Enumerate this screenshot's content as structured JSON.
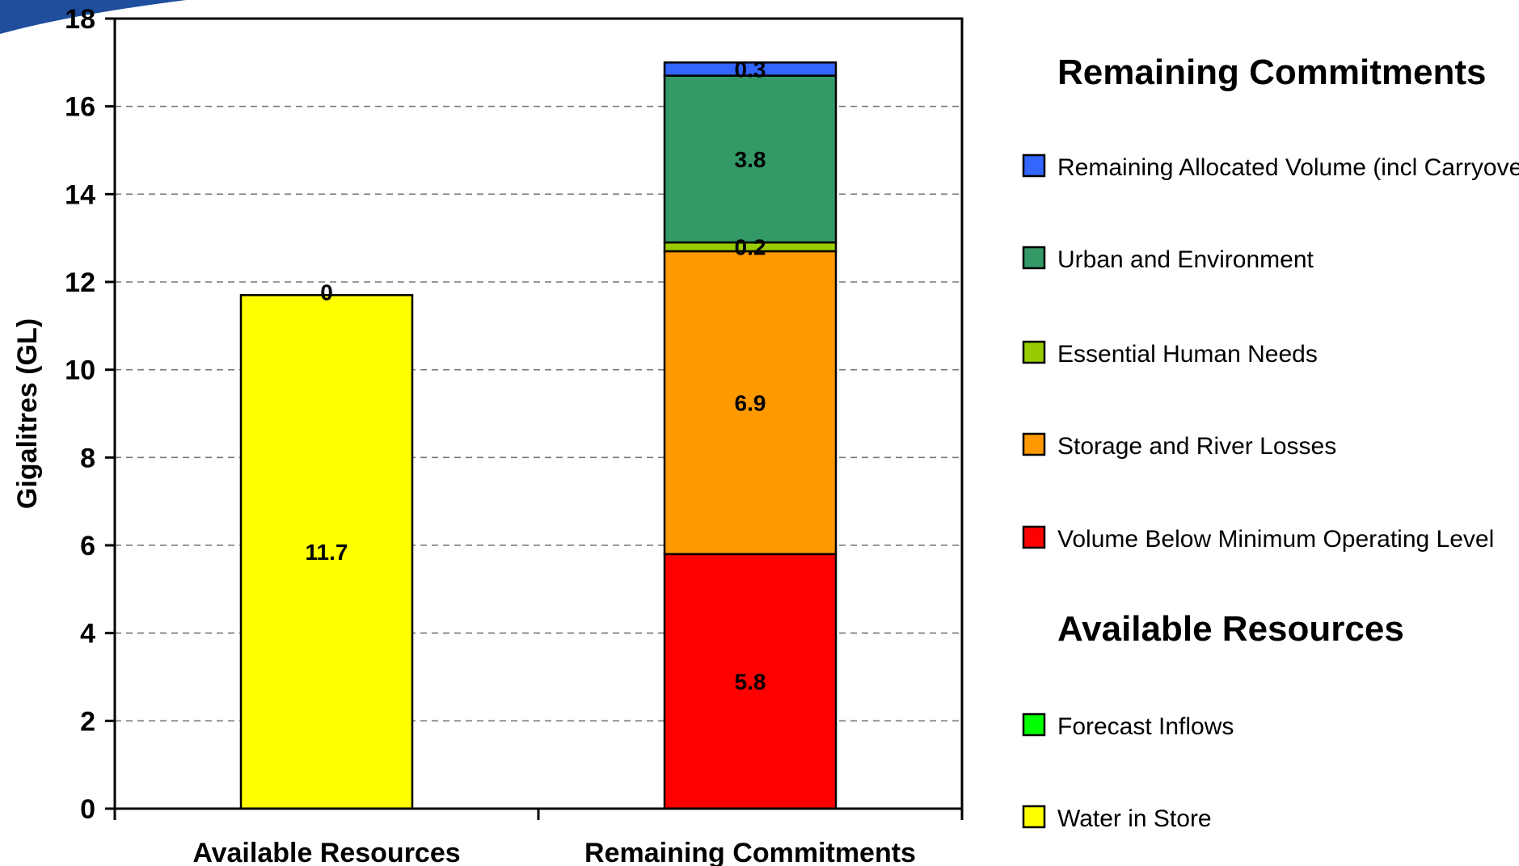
{
  "chart_data": {
    "type": "bar",
    "stacked": true,
    "ylabel": "Gigalitres (GL)",
    "xlabel": "",
    "ylim": [
      0,
      18
    ],
    "yticks": [
      0,
      2,
      4,
      6,
      8,
      10,
      12,
      14,
      16,
      18
    ],
    "grid": "horizontal-dashed",
    "categories": [
      "Available Resources",
      "Remaining Commitments"
    ],
    "series": [
      {
        "name": "Water in Store",
        "color": "#ffff00",
        "values": [
          11.7,
          0
        ],
        "labels": [
          "11.7",
          ""
        ]
      },
      {
        "name": "Forecast Inflows",
        "color": "#00ff00",
        "values": [
          0,
          0
        ],
        "labels": [
          "0",
          ""
        ]
      },
      {
        "name": "Volume Below Minimum Operating Level",
        "color": "#ff0000",
        "values": [
          0,
          5.8
        ],
        "labels": [
          "",
          "5.8"
        ]
      },
      {
        "name": "Storage and River Losses",
        "color": "#ff9900",
        "values": [
          0,
          6.9
        ],
        "labels": [
          "",
          "6.9"
        ]
      },
      {
        "name": "Essential Human Needs",
        "color": "#99cc00",
        "values": [
          0,
          0.2
        ],
        "labels": [
          "",
          "0.2"
        ]
      },
      {
        "name": "Urban and Environment",
        "color": "#339966",
        "values": [
          0,
          3.8
        ],
        "labels": [
          "",
          "3.8"
        ]
      },
      {
        "name": "Remaining Allocated Volume (incl Carryover)",
        "color": "#3366ff",
        "values": [
          0,
          0.3
        ],
        "labels": [
          "",
          "0.3"
        ]
      }
    ],
    "legend": {
      "placement": "right",
      "groups": [
        {
          "title": "Remaining Commitments",
          "items": [
            {
              "label": "Remaining Allocated Volume (incl Carryover)",
              "color": "#3366ff"
            },
            {
              "label": "Urban and Environment",
              "color": "#339966"
            },
            {
              "label": "Essential Human Needs",
              "color": "#99cc00"
            },
            {
              "label": "Storage and River Losses",
              "color": "#ff9900"
            },
            {
              "label": "Volume Below Minimum Operating Level",
              "color": "#ff0000"
            }
          ]
        },
        {
          "title": "Available Resources",
          "items": [
            {
              "label": "Forecast Inflows",
              "color": "#00ff00"
            },
            {
              "label": "Water in Store",
              "color": "#ffff00"
            }
          ]
        }
      ]
    }
  }
}
